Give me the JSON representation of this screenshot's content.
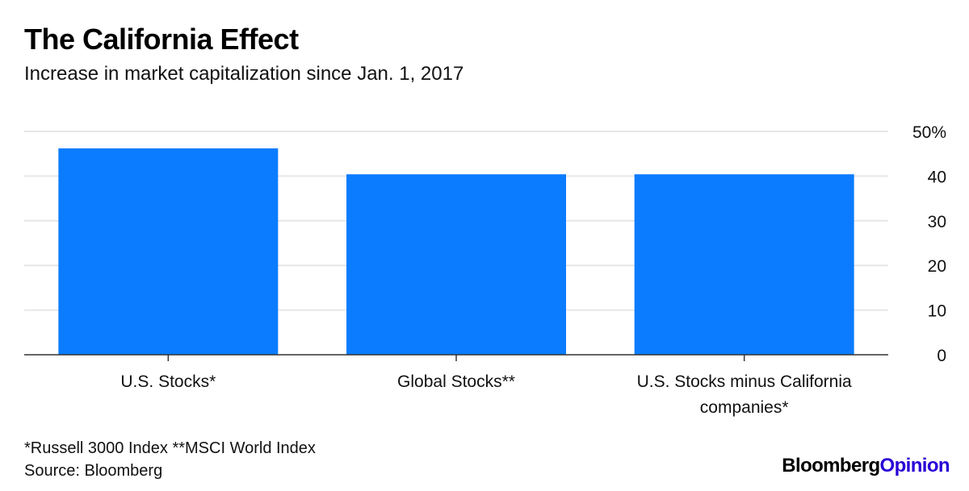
{
  "title": "The California Effect",
  "subtitle": "Increase in market capitalization since Jan. 1, 2017",
  "footnote": "*Russell 3000 Index **MSCI World Index",
  "source": "Source: Bloomberg",
  "logo": {
    "part1": "Bloomberg",
    "part2": "Opinion"
  },
  "colors": {
    "bar": "#0b7cff",
    "grid": "#e6e6e6",
    "axis": "#333333",
    "logo_accent": "#2800d7"
  },
  "chart_data": {
    "type": "bar",
    "categories": [
      "U.S. Stocks*",
      "Global Stocks**",
      "U.S. Stocks minus California companies*"
    ],
    "category_lines": [
      [
        "U.S. Stocks*"
      ],
      [
        "Global Stocks**"
      ],
      [
        "U.S. Stocks minus California",
        "companies*"
      ]
    ],
    "values": [
      46.2,
      40.4,
      40.4
    ],
    "ylim": [
      0,
      50
    ],
    "yticks": [
      0,
      10,
      20,
      30,
      40,
      50
    ],
    "ytick_labels": [
      "0",
      "10",
      "20",
      "30",
      "40",
      "50%"
    ],
    "y_axis_side": "right",
    "grid": true,
    "xlabel": "",
    "ylabel": ""
  }
}
